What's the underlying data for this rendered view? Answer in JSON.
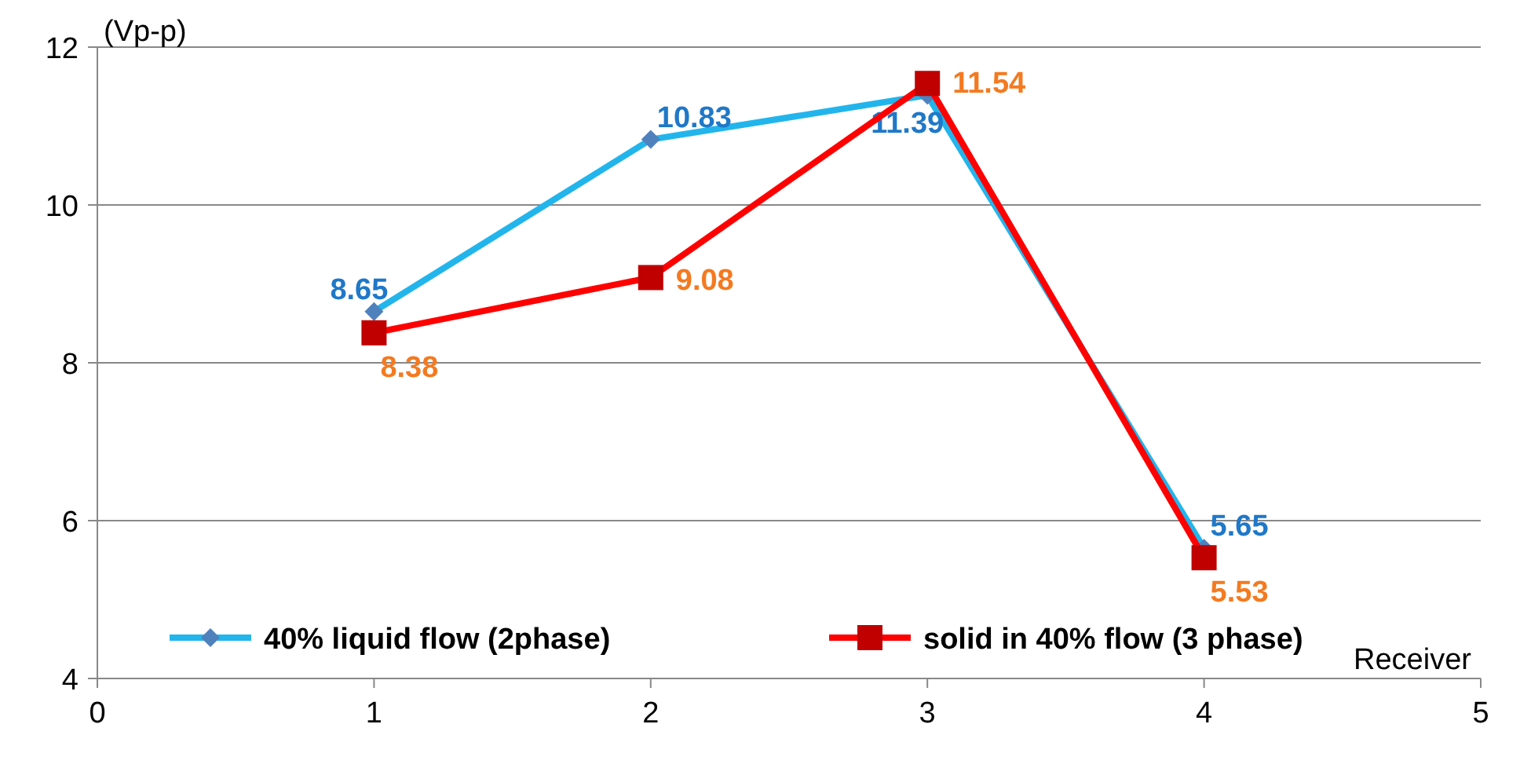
{
  "chart_data": {
    "type": "line",
    "xlabel": "Receiver",
    "ylabel": "(Vp-p)",
    "x": [
      1,
      2,
      3,
      4
    ],
    "series": [
      {
        "name": "40% liquid flow (2phase)",
        "color": "#22b5ec",
        "marker": "diamond",
        "values": [
          8.65,
          10.83,
          11.39,
          5.65
        ]
      },
      {
        "name": "solid in 40% flow (3 phase)",
        "color": "#ff0000",
        "marker": "square",
        "values": [
          8.38,
          9.08,
          11.54,
          5.53
        ]
      }
    ],
    "xlim": [
      0,
      5
    ],
    "xticks": [
      0,
      1,
      2,
      3,
      4,
      5
    ],
    "ylim": [
      4,
      12
    ],
    "yticks": [
      4,
      6,
      8,
      10,
      12
    ],
    "grid": "y",
    "legend": "bottom",
    "data_labels": true
  }
}
